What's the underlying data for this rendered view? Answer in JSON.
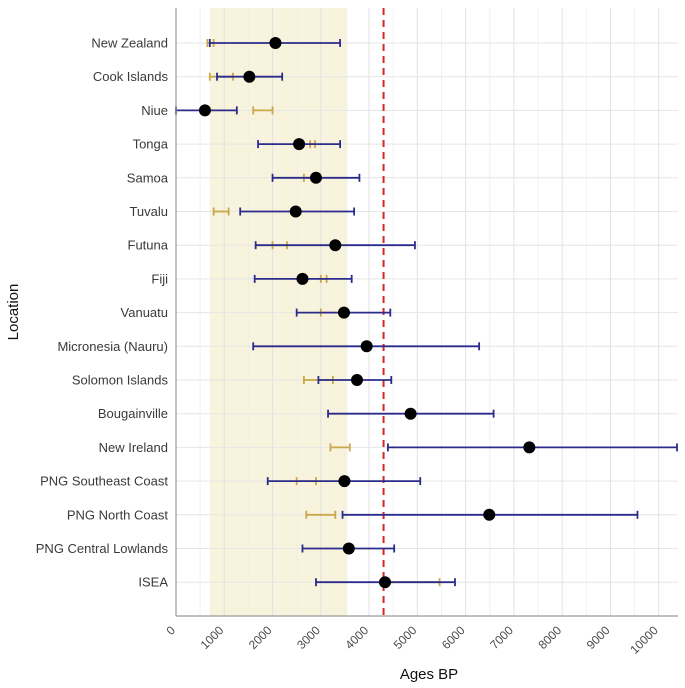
{
  "chart_data": {
    "type": "errorbar",
    "xlabel": "Ages BP",
    "ylabel": "Location",
    "xlim": [
      0,
      10400
    ],
    "x_ticks": [
      "0",
      "1000",
      "2000",
      "3000",
      "4000",
      "5000",
      "6000",
      "7000",
      "8000",
      "9000",
      "10000"
    ],
    "highlight_band": {
      "from": 700,
      "to": 3550,
      "color": "#f7f3dc"
    },
    "reference_line": {
      "x": 4300,
      "color": "#d62728",
      "style": "dashed"
    },
    "colors": {
      "point": "#000000",
      "interval_a": "#2b2b8c",
      "interval_b": "#c9a74a"
    },
    "locations": [
      {
        "name": "New Zealand",
        "point": 2060,
        "range_a": [
          700,
          3400
        ],
        "range_b": [
          650,
          780
        ]
      },
      {
        "name": "Cook Islands",
        "point": 1520,
        "range_a": [
          850,
          2200
        ],
        "range_b": [
          700,
          1180
        ]
      },
      {
        "name": "Niue",
        "point": 600,
        "range_a": [
          0,
          1260
        ],
        "range_b": [
          1600,
          2000
        ]
      },
      {
        "name": "Tonga",
        "point": 2550,
        "range_a": [
          1700,
          3400
        ],
        "range_b": [
          2780,
          2880
        ]
      },
      {
        "name": "Samoa",
        "point": 2900,
        "range_a": [
          2000,
          3800
        ],
        "range_b": [
          2650,
          2900
        ]
      },
      {
        "name": "Tuvalu",
        "point": 2480,
        "range_a": [
          1330,
          3690
        ],
        "range_b": [
          780,
          1090
        ]
      },
      {
        "name": "Futuna",
        "point": 3300,
        "range_a": [
          1650,
          4950
        ],
        "range_b": [
          2000,
          2300
        ]
      },
      {
        "name": "Fiji",
        "point": 2620,
        "range_a": [
          1630,
          3640
        ],
        "range_b": [
          3000,
          3120
        ]
      },
      {
        "name": "Vanuatu",
        "point": 3480,
        "range_a": [
          2500,
          4440
        ],
        "range_b": [
          3000,
          3500
        ]
      },
      {
        "name": "Micronesia (Nauru)",
        "point": 3950,
        "range_a": [
          1600,
          6280
        ],
        "range_b": null
      },
      {
        "name": "Solomon Islands",
        "point": 3750,
        "range_a": [
          2950,
          4460
        ],
        "range_b": [
          2650,
          3250
        ]
      },
      {
        "name": "Bougainville",
        "point": 4860,
        "range_a": [
          3150,
          6580
        ],
        "range_b": null
      },
      {
        "name": "New Ireland",
        "point": 7320,
        "range_a": [
          4390,
          10380
        ],
        "range_b": [
          3200,
          3600
        ]
      },
      {
        "name": "PNG Southeast Coast",
        "point": 3490,
        "range_a": [
          1900,
          5060
        ],
        "range_b": [
          2500,
          2900
        ]
      },
      {
        "name": "PNG North Coast",
        "point": 6490,
        "range_a": [
          3450,
          9560
        ],
        "range_b": [
          2700,
          3300
        ]
      },
      {
        "name": "PNG Central Lowlands",
        "point": 3580,
        "range_a": [
          2620,
          4520
        ],
        "range_b": null
      },
      {
        "name": "ISEA",
        "point": 4330,
        "range_a": [
          2900,
          5780
        ],
        "range_b": [
          4330,
          5460
        ]
      }
    ]
  }
}
